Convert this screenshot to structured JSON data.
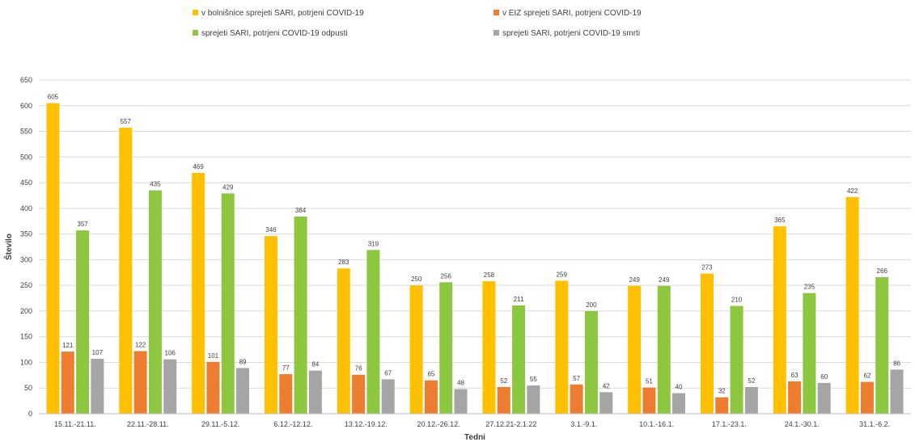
{
  "chart_data": {
    "type": "bar",
    "xlabel": "Tedni",
    "ylabel": "Število",
    "ylim": [
      0,
      650
    ],
    "yticks": [
      0,
      50,
      100,
      150,
      200,
      250,
      300,
      350,
      400,
      450,
      500,
      550,
      600,
      650
    ],
    "grid": true,
    "legend_position": "top",
    "categories": [
      "15.11.-21.11.",
      "22.11.-28.11.",
      "29.11.-5.12.",
      "6.12.-12.12.",
      "13.12.-19.12.",
      "20.12.-26.12.",
      "27.12.21-2.1.22",
      "3.1.-9.1.",
      "10.1.-16.1.",
      "17.1.-23.1.",
      "24.1.-30.1.",
      "31.1.-6.2."
    ],
    "series": [
      {
        "name": "v bolnišnice sprejeti SARI, potrjeni COVID-19",
        "color": "#FFC000",
        "values": [
          605,
          557,
          469,
          346,
          283,
          250,
          258,
          259,
          249,
          273,
          365,
          422
        ]
      },
      {
        "name": "v EIZ sprejeti SARI, potrjeni COVID-19",
        "color": "#ED7D31",
        "values": [
          121,
          122,
          101,
          77,
          76,
          65,
          52,
          57,
          51,
          32,
          63,
          62
        ]
      },
      {
        "name": "sprejeti SARI, potrjeni COVID-19 odpusti",
        "color": "#8DC63F",
        "values": [
          357,
          435,
          429,
          384,
          319,
          256,
          211,
          200,
          249,
          210,
          235,
          266
        ]
      },
      {
        "name": "sprejeti SARI, potrjeni COVID-19 smrti",
        "color": "#A5A5A5",
        "values": [
          107,
          106,
          89,
          84,
          67,
          48,
          55,
          42,
          40,
          52,
          60,
          86
        ]
      }
    ]
  }
}
